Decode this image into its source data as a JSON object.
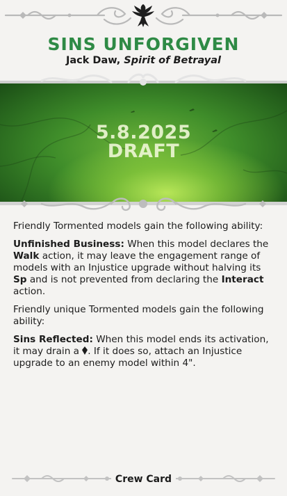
{
  "header": {
    "title": "SINS UNFORGIVEN",
    "subtitle_name": "Jack Daw, ",
    "subtitle_epithet": "Spirit of Betrayal",
    "faction_icon": "raven-emblem-icon"
  },
  "art": {
    "date": "5.8.2025",
    "status": "DRAFT"
  },
  "rules": {
    "intro1": "Friendly Tormented models gain the following ability:",
    "ability1": {
      "name": "Unfinished Business:",
      "text_a": " When this model declares the ",
      "keyword1": "Walk",
      "text_b": " action, it may leave the engagement range of models with an Injustice upgrade without halving its ",
      "keyword2": "Sp",
      "text_c": " and is not prevented from declaring the ",
      "keyword3": "Interact",
      "text_d": " action."
    },
    "intro2": "Friendly unique Tormented models gain the following ability:",
    "ability2": {
      "name": "Sins Reflected:",
      "text_a": " When this model ends its activation, it may drain a ",
      "soulstone_icon": "soulstone-icon",
      "text_b": ". If it does so, attach an Injustice upgrade to an enemy model within 4\"."
    }
  },
  "footer": {
    "label": "Crew Card"
  },
  "colors": {
    "title_green": "#2e8a45",
    "background": "#f4f3f1",
    "ornament_gray": "#b8b8b8"
  }
}
